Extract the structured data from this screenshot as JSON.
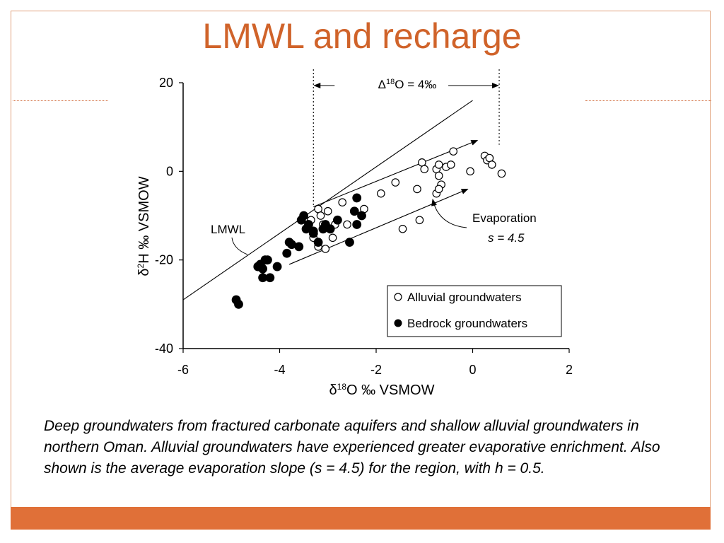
{
  "slide": {
    "title": "LMWL and recharge",
    "caption": "Deep groundwaters from fractured carbonate aquifers and shallow alluvial groundwaters in northern Oman. Alluvial groundwaters have experienced greater evaporative enrichment. Also shown is the average evaporation slope (s = 4.5) for the region, with h = 0.5.",
    "accent_color": "#d0632a",
    "footer_color": "#e07038"
  },
  "chart_data": {
    "type": "scatter",
    "xlabel": "δ18O ‰ VSMOW",
    "ylabel": "δ2H ‰ VSMOW",
    "xlim": [
      -6,
      2
    ],
    "ylim": [
      -40,
      20
    ],
    "xticks": [
      "-6",
      "-4",
      "-2",
      "0",
      "2"
    ],
    "yticks": [
      "20",
      "0",
      "-20",
      "-40"
    ],
    "annotations": {
      "lmwl_label": "LMWL",
      "evap_label_1": "Evaporation",
      "evap_label_2": "s = 4.5",
      "delta_label": "Δ18O = 4‰"
    },
    "lmwl_line": {
      "x": [
        -6,
        0
      ],
      "y": [
        -29,
        16
      ]
    },
    "evap_arrows": [
      {
        "x": [
          -3.3,
          0.1
        ],
        "y": [
          -8,
          7
        ]
      },
      {
        "x": [
          -3.8,
          -0.1
        ],
        "y": [
          -21,
          -4
        ]
      }
    ],
    "delta_range": [
      -3.3,
      0.55
    ],
    "series": [
      {
        "name": "Alluvial groundwaters",
        "marker": "open-circle",
        "x": [
          -3.2,
          -3.0,
          -3.35,
          -3.1,
          -3.45,
          -3.3,
          -2.9,
          -3.2,
          -3.05,
          -2.85,
          -3.15,
          -2.7,
          -2.6,
          -2.3,
          -2.25,
          -1.9,
          -1.6,
          -1.45,
          -1.1,
          -1.05,
          -1.0,
          -0.75,
          -0.7,
          -0.65,
          -0.55,
          -0.45,
          -0.4,
          -0.7,
          -0.75,
          -0.7,
          -1.15,
          -0.05,
          0.25,
          0.3,
          0.35,
          0.4,
          0.6
        ],
        "y": [
          -8.5,
          -9,
          -11,
          -12,
          -13,
          -15,
          -15,
          -17,
          -17.5,
          -12,
          -10,
          -7,
          -12,
          -10,
          -8.5,
          -5,
          -2.5,
          -13,
          -11,
          2,
          0.5,
          0.5,
          1.5,
          -3,
          1,
          1.5,
          4.5,
          -1,
          -5,
          -4,
          -4,
          0,
          3.5,
          2.5,
          3,
          1.5,
          -0.5
        ]
      },
      {
        "name": "Bedrock groundwaters",
        "marker": "filled-circle",
        "x": [
          -4.9,
          -4.85,
          -4.45,
          -4.4,
          -4.35,
          -4.35,
          -4.3,
          -4.2,
          -4.25,
          -4.05,
          -3.85,
          -3.8,
          -3.75,
          -3.6,
          -3.55,
          -3.5,
          -3.45,
          -3.4,
          -3.3,
          -3.3,
          -3.2,
          -3.1,
          -3.05,
          -2.95,
          -2.8,
          -2.55,
          -2.45,
          -2.4,
          -2.4,
          -2.3
        ],
        "y": [
          -29,
          -30,
          -21.5,
          -21,
          -22,
          -24,
          -20,
          -24,
          -20,
          -21.5,
          -18.5,
          -16,
          -16.5,
          -17,
          -11,
          -10,
          -13,
          -12,
          -13.5,
          -14,
          -16,
          -13,
          -12,
          -13,
          -11,
          -16,
          -9,
          -6,
          -12,
          -10
        ]
      }
    ],
    "legend_position": "bottom-right",
    "grid": false
  }
}
